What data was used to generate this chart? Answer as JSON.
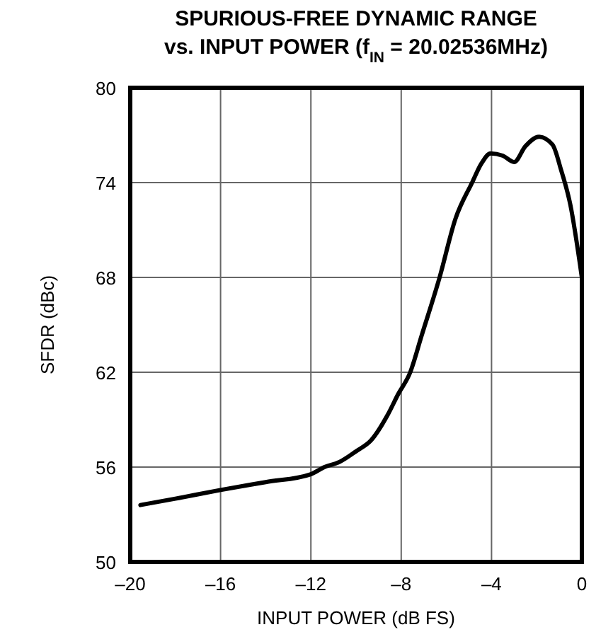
{
  "chart_data": {
    "type": "line",
    "title": "SPURIOUS-FREE DYNAMIC RANGE\nvs. INPUT POWER (f$_{IN}$ = 20.02536MHz)",
    "xlabel": "INPUT POWER (dB FS)",
    "ylabel": "SFDR (dBc)",
    "x": [
      -19.55,
      -18,
      -16,
      -14,
      -12,
      -11.4,
      -10.77,
      -10,
      -9.33,
      -8.6,
      -8.14,
      -7.6,
      -7.1,
      -6.3,
      -5.6,
      -4.86,
      -4.45,
      -4.04,
      -3.5,
      -3.0,
      -2.5,
      -1.9,
      -1.3,
      -0.92,
      -0.51,
      0
    ],
    "series": [
      {
        "color": "#000000",
        "values": [
          53.6,
          54.0,
          54.55,
          55.05,
          55.55,
          56.0,
          56.3,
          57.0,
          57.7,
          59.3,
          60.6,
          62.0,
          64.3,
          68.0,
          71.7,
          74.0,
          75.2,
          75.85,
          75.7,
          75.3,
          76.3,
          76.9,
          76.4,
          74.8,
          72.6,
          68.0
        ]
      }
    ],
    "xlim": [
      -20,
      0
    ],
    "xticks": [
      {
        "value": -20,
        "label": "–20"
      },
      {
        "value": -16,
        "label": "–16"
      },
      {
        "value": -12,
        "label": "–12"
      },
      {
        "value": -8,
        "label": "–8"
      },
      {
        "value": -4,
        "label": "–4"
      },
      0
    ],
    "ylim": [
      50,
      80
    ],
    "yticks": [
      50,
      56,
      62,
      68,
      74,
      80
    ],
    "grid": true,
    "marker": "none",
    "line_style": "solid"
  }
}
